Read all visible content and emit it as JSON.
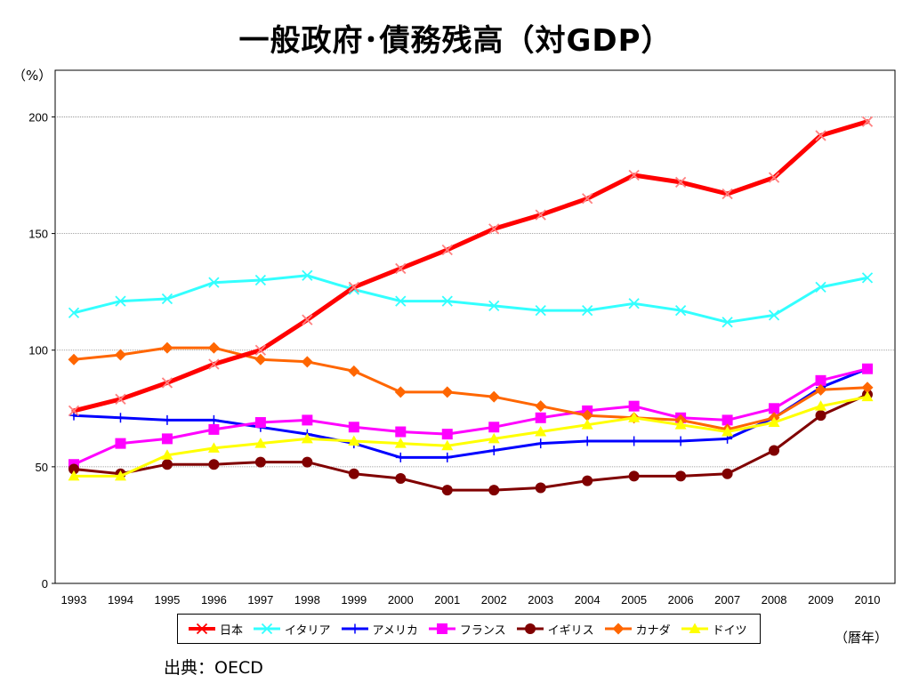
{
  "title": "一般政府･債務残高（対GDP）",
  "source": "出典：OECD",
  "chart_data": {
    "type": "line",
    "title": "一般政府･債務残高（対GDP）",
    "ylabel": "（%）",
    "xlabel": "（暦年）",
    "ylim": [
      0,
      220
    ],
    "yticks": [
      0,
      50,
      100,
      150,
      200
    ],
    "grid": true,
    "legend_position": "bottom",
    "x": [
      "1993",
      "1994",
      "1995",
      "1996",
      "1997",
      "1998",
      "1999",
      "2000",
      "2001",
      "2002",
      "2003",
      "2004",
      "2005",
      "2006",
      "2007",
      "2008",
      "2009",
      "2010"
    ],
    "series": [
      {
        "name": "日本",
        "color": "#ff0000",
        "marker": "x",
        "width": 5,
        "values": [
          74,
          79,
          86,
          94,
          100,
          113,
          127,
          135,
          143,
          152,
          158,
          165,
          175,
          172,
          167,
          174,
          192,
          198
        ]
      },
      {
        "name": "イタリア",
        "color": "#33ffff",
        "marker": "x",
        "width": 3,
        "values": [
          116,
          121,
          122,
          129,
          130,
          132,
          126,
          121,
          121,
          119,
          117,
          117,
          120,
          117,
          112,
          115,
          127,
          131
        ]
      },
      {
        "name": "アメリカ",
        "color": "#0000ff",
        "marker": "plus",
        "width": 3,
        "values": [
          72,
          71,
          70,
          70,
          67,
          64,
          60,
          54,
          54,
          57,
          60,
          61,
          61,
          61,
          62,
          71,
          84,
          92
        ]
      },
      {
        "name": "フランス",
        "color": "#ff00ff",
        "marker": "square",
        "width": 3,
        "values": [
          51,
          60,
          62,
          66,
          69,
          70,
          67,
          65,
          64,
          67,
          71,
          74,
          76,
          71,
          70,
          75,
          87,
          92
        ]
      },
      {
        "name": "イギリス",
        "color": "#800000",
        "marker": "circle",
        "width": 3,
        "values": [
          49,
          47,
          51,
          51,
          52,
          52,
          47,
          45,
          40,
          40,
          41,
          44,
          46,
          46,
          47,
          57,
          72,
          81
        ]
      },
      {
        "name": "カナダ",
        "color": "#ff6600",
        "marker": "diamond",
        "width": 3,
        "values": [
          96,
          98,
          101,
          101,
          96,
          95,
          91,
          82,
          82,
          80,
          76,
          72,
          71,
          70,
          66,
          71,
          83,
          84
        ]
      },
      {
        "name": "ドイツ",
        "color": "#ffff00",
        "marker": "triangle",
        "width": 3,
        "values": [
          46,
          46,
          55,
          58,
          60,
          62,
          61,
          60,
          59,
          62,
          65,
          68,
          71,
          68,
          65,
          69,
          76,
          80
        ]
      }
    ]
  }
}
